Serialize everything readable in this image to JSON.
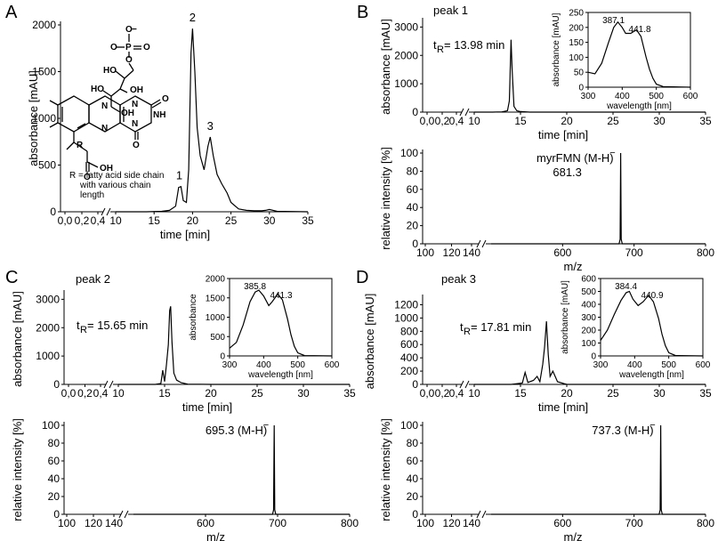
{
  "figure": {
    "panels": [
      "A",
      "B",
      "C",
      "D"
    ]
  },
  "chart_data": [
    {
      "id": "A",
      "type": "line",
      "panel_label": "A",
      "title": "",
      "xlabel": "time [min]",
      "ylabel": "absorbance [mAU]",
      "xticks": [
        "0,0",
        "0,2",
        "0,4",
        "10",
        "15",
        "20",
        "25",
        "30",
        "35"
      ],
      "yticks": [
        "0",
        "500",
        "1000",
        "1500",
        "2000"
      ],
      "xlim": [
        10,
        35
      ],
      "ylim": [
        0,
        2000
      ],
      "series": [
        {
          "name": "chromatogram",
          "x": [
            10,
            14,
            16,
            17,
            17.8,
            18.2,
            18.5,
            18.8,
            19.2,
            19.5,
            19.8,
            20.0,
            20.3,
            20.6,
            21,
            21.5,
            22.0,
            22.3,
            22.7,
            23.2,
            23.8,
            24.5,
            25,
            26,
            27,
            28,
            29,
            29.5,
            30,
            30.5,
            31,
            35
          ],
          "y": [
            0,
            0,
            5,
            15,
            60,
            260,
            270,
            120,
            100,
            450,
            1700,
            1960,
            1500,
            900,
            600,
            450,
            700,
            800,
            600,
            400,
            300,
            200,
            100,
            30,
            15,
            10,
            10,
            15,
            25,
            15,
            5,
            0
          ]
        }
      ],
      "peaks": [
        {
          "label": "1",
          "x": 18.5
        },
        {
          "label": "2",
          "x": 20.0
        },
        {
          "label": "3",
          "x": 22.3
        }
      ],
      "structure_labels": [
        "O",
        "O",
        "P",
        "O",
        "O",
        "HO",
        "OH",
        "HO",
        "OH",
        "N",
        "N",
        "O",
        "NH",
        "N",
        "N",
        "O",
        "R",
        "O",
        "OH"
      ],
      "structure_charge": "−",
      "caption": [
        "R = fatty acid side chain",
        "with various chain",
        "length"
      ]
    },
    {
      "id": "B-top",
      "type": "line",
      "panel_label": "B",
      "title": "peak 1",
      "xlabel": "time [min]",
      "ylabel": "absorbance [mAU]",
      "xticks": [
        "0,0",
        "0,2",
        "0,4",
        "10",
        "15",
        "20",
        "25",
        "30",
        "35"
      ],
      "yticks": [
        "0",
        "1000",
        "2000",
        "3000"
      ],
      "xlim": [
        10,
        35
      ],
      "ylim": [
        0,
        3200
      ],
      "annotation_t": "t",
      "annotation_sub": "R",
      "annotation_value": " = 13.98 min",
      "series": [
        {
          "name": "chromatogram",
          "x": [
            10,
            12,
            13,
            13.6,
            13.8,
            13.98,
            14.1,
            14.3,
            14.6,
            15,
            16,
            20,
            35
          ],
          "y": [
            0,
            0,
            10,
            50,
            400,
            2550,
            1500,
            200,
            50,
            20,
            0,
            0,
            0
          ]
        }
      ],
      "inset": {
        "ylabel": "absorbance [mAU]",
        "xlabel": "wavelength [nm]",
        "xticks": [
          "300",
          "400",
          "500",
          "600"
        ],
        "yticks": [
          "0",
          "50",
          "100",
          "150",
          "200",
          "250"
        ],
        "xlim": [
          300,
          600
        ],
        "ylim": [
          0,
          250
        ],
        "peak_labels": [
          "387.1",
          "441.8"
        ],
        "series": {
          "x": [
            300,
            320,
            340,
            360,
            375,
            387,
            400,
            410,
            425,
            441.8,
            455,
            470,
            480,
            490,
            500,
            520,
            600
          ],
          "y": [
            50,
            45,
            80,
            150,
            200,
            218,
            200,
            180,
            180,
            192,
            170,
            100,
            60,
            30,
            10,
            2,
            0
          ]
        }
      }
    },
    {
      "id": "B-bottom",
      "type": "line",
      "panel_label": "",
      "title": "",
      "xlabel": "m/z",
      "ylabel": "relative intensity [%]",
      "xticks": [
        "100",
        "120",
        "140",
        "600",
        "700",
        "800"
      ],
      "yticks": [
        "0",
        "20",
        "40",
        "60",
        "80",
        "100"
      ],
      "xlim": [
        500,
        800
      ],
      "ylim": [
        0,
        100
      ],
      "annotation_main": "myrFMN (M-H)",
      "annotation_sup": "−",
      "annotation_value": "681.3",
      "series": [
        {
          "name": "spectrum",
          "x": [
            500,
            679,
            680.5,
            681.3,
            682,
            683.5,
            800
          ],
          "y": [
            0,
            0,
            5,
            100,
            5,
            0,
            0
          ]
        }
      ]
    },
    {
      "id": "C-top",
      "type": "line",
      "panel_label": "C",
      "title": "peak 2",
      "xlabel": "time [min]",
      "ylabel": "absorbance [mAU]",
      "xticks": [
        "0,0",
        "0,2",
        "0,4",
        "10",
        "15",
        "20",
        "25",
        "30",
        "35"
      ],
      "yticks": [
        "0",
        "1000",
        "2000",
        "3000"
      ],
      "xlim": [
        10,
        35
      ],
      "ylim": [
        0,
        3200
      ],
      "annotation_t": "t",
      "annotation_sub": "R",
      "annotation_value": " = 15.65 min",
      "series": [
        {
          "name": "chromatogram",
          "x": [
            10,
            14,
            14.6,
            14.8,
            15.0,
            15.2,
            15.4,
            15.55,
            15.65,
            15.8,
            16.0,
            16.3,
            16.8,
            17.5,
            20,
            35
          ],
          "y": [
            0,
            0,
            30,
            500,
            100,
            700,
            1400,
            2600,
            2750,
            1500,
            400,
            150,
            60,
            10,
            0,
            0
          ]
        }
      ],
      "inset": {
        "ylabel": "absorbance",
        "xlabel": "wavelength [nm]",
        "xticks": [
          "300",
          "400",
          "500",
          "600"
        ],
        "yticks": [
          "0",
          "500",
          "1000",
          "1500",
          "2000"
        ],
        "xlim": [
          300,
          600
        ],
        "ylim": [
          0,
          2000
        ],
        "peak_labels": [
          "385.8",
          "441.3"
        ],
        "series": {
          "x": [
            300,
            320,
            340,
            360,
            375,
            385.8,
            400,
            415,
            425,
            441.3,
            455,
            470,
            480,
            490,
            500,
            520,
            600
          ],
          "y": [
            200,
            350,
            800,
            1400,
            1650,
            1700,
            1550,
            1300,
            1400,
            1600,
            1450,
            950,
            550,
            250,
            80,
            10,
            0
          ]
        }
      }
    },
    {
      "id": "C-bottom",
      "type": "line",
      "panel_label": "",
      "title": "",
      "xlabel": "m/z",
      "ylabel": "relative intensity [%]",
      "xticks": [
        "100",
        "120",
        "140",
        "600",
        "700",
        "800"
      ],
      "yticks": [
        "0",
        "20",
        "40",
        "60",
        "80",
        "100"
      ],
      "xlim": [
        500,
        800
      ],
      "ylim": [
        0,
        100
      ],
      "annotation_main": "695.3 (M-H)",
      "annotation_sup": "−",
      "annotation_value": "",
      "series": [
        {
          "name": "spectrum",
          "x": [
            500,
            693,
            694.5,
            695.3,
            696,
            697.5,
            800
          ],
          "y": [
            0,
            0,
            5,
            100,
            5,
            0,
            0
          ]
        }
      ]
    },
    {
      "id": "D-top",
      "type": "line",
      "panel_label": "D",
      "title": "peak 3",
      "xlabel": "time [min]",
      "ylabel": "absorbance [mAU]",
      "xticks": [
        "0,0",
        "0,2",
        "0,4",
        "10",
        "15",
        "20",
        "25",
        "30",
        "35"
      ],
      "yticks": [
        "0",
        "200",
        "400",
        "600",
        "800",
        "1000",
        "1200"
      ],
      "xlim": [
        10,
        35
      ],
      "ylim": [
        0,
        1300
      ],
      "annotation_t": "t",
      "annotation_sub": "R",
      "annotation_value": " = 17.81 min",
      "series": [
        {
          "name": "chromatogram",
          "x": [
            10,
            14,
            15.2,
            15.5,
            15.8,
            16.4,
            16.8,
            17.1,
            17.4,
            17.6,
            17.81,
            18.0,
            18.2,
            18.5,
            19,
            20,
            35
          ],
          "y": [
            0,
            0,
            20,
            180,
            30,
            60,
            120,
            40,
            300,
            550,
            950,
            450,
            120,
            200,
            40,
            0,
            0
          ]
        }
      ],
      "inset": {
        "ylabel": "absorbance [mAU]",
        "xlabel": "wavelength [nm]",
        "xticks": [
          "300",
          "400",
          "500",
          "600"
        ],
        "yticks": [
          "0",
          "100",
          "200",
          "300",
          "400",
          "500",
          "600"
        ],
        "xlim": [
          300,
          600
        ],
        "ylim": [
          0,
          600
        ],
        "peak_labels": [
          "384.4",
          "440.9"
        ],
        "series": {
          "x": [
            300,
            320,
            340,
            360,
            375,
            384.4,
            395,
            410,
            425,
            440.9,
            455,
            470,
            480,
            490,
            500,
            520,
            600
          ],
          "y": [
            120,
            200,
            320,
            430,
            490,
            500,
            440,
            390,
            420,
            470,
            420,
            290,
            170,
            80,
            25,
            3,
            0
          ]
        }
      }
    },
    {
      "id": "D-bottom",
      "type": "line",
      "panel_label": "",
      "title": "",
      "xlabel": "m/z",
      "ylabel": "relative intensity [%]",
      "xticks": [
        "100",
        "120",
        "140",
        "600",
        "700",
        "800"
      ],
      "yticks": [
        "0",
        "20",
        "40",
        "60",
        "80",
        "100"
      ],
      "xlim": [
        500,
        800
      ],
      "ylim": [
        0,
        100
      ],
      "annotation_main": "737.3 (M-H)",
      "annotation_sup": "−",
      "annotation_value": "",
      "series": [
        {
          "name": "spectrum",
          "x": [
            500,
            735,
            736.5,
            737.3,
            738,
            739.5,
            800
          ],
          "y": [
            0,
            0,
            5,
            100,
            5,
            0,
            0
          ]
        }
      ]
    }
  ]
}
